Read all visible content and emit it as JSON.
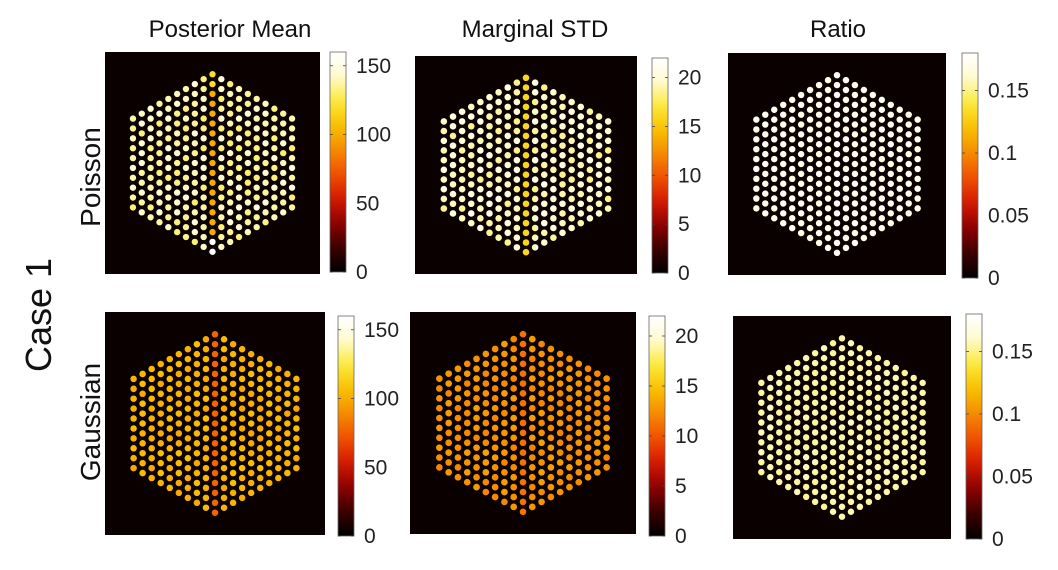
{
  "figure": {
    "case_label": "Case 1",
    "column_titles": [
      "Posterior Mean",
      "Marginal STD",
      "Ratio"
    ],
    "row_labels": [
      "Poisson",
      "Gaussian"
    ]
  },
  "colormap": {
    "name": "hot",
    "stops": [
      "#000000",
      "#3a0000",
      "#8c0000",
      "#d41a00",
      "#f05000",
      "#f58a00",
      "#f8c000",
      "#fbe93a",
      "#fffbd0",
      "#ffffff"
    ]
  },
  "chart_data": [
    {
      "type": "heatmap",
      "name": "poisson-posterior-mean",
      "title": "Posterior Mean",
      "row": "Poisson",
      "colorbar": {
        "range": [
          0,
          160
        ],
        "ticks": [
          0,
          50,
          100,
          150
        ],
        "tick_labels": [
          "0",
          "50",
          "100",
          "150"
        ]
      },
      "hex_pattern": {
        "rings": 9,
        "base_value": 138,
        "center_column_value": 100,
        "center_column_top_value": 120,
        "center_column_bottom_value": 160,
        "edge_variation": 8
      }
    },
    {
      "type": "heatmap",
      "name": "poisson-marginal-std",
      "title": "Marginal STD",
      "row": "Poisson",
      "colorbar": {
        "range": [
          0,
          22
        ],
        "ticks": [
          0,
          5,
          10,
          15,
          20
        ],
        "tick_labels": [
          "0",
          "5",
          "10",
          "15",
          "20"
        ]
      },
      "hex_pattern": {
        "rings": 9,
        "base_value": 19.5,
        "center_column_value": 16,
        "center_column_top_value": 16,
        "center_column_bottom_value": 16,
        "edge_variation": 1.2
      }
    },
    {
      "type": "heatmap",
      "name": "poisson-ratio",
      "title": "Ratio",
      "row": "Poisson",
      "colorbar": {
        "range": [
          0,
          0.18
        ],
        "ticks": [
          0,
          0.05,
          0.1,
          0.15
        ],
        "tick_labels": [
          "0",
          "0.05",
          "0.1",
          "0.15"
        ]
      },
      "hex_pattern": {
        "rings": 9,
        "base_value": 0.172,
        "center_column_value": 0.176,
        "center_column_top_value": 0.176,
        "center_column_bottom_value": 0.176,
        "edge_variation": 0.004
      }
    },
    {
      "type": "heatmap",
      "name": "gaussian-posterior-mean",
      "title": "Posterior Mean",
      "row": "Gaussian",
      "colorbar": {
        "range": [
          0,
          160
        ],
        "ticks": [
          0,
          50,
          100,
          150
        ],
        "tick_labels": [
          "0",
          "50",
          "100",
          "150"
        ]
      },
      "hex_pattern": {
        "rings": 9,
        "base_value": 103,
        "center_column_value": 78,
        "center_column_top_value": 78,
        "center_column_bottom_value": 78,
        "edge_variation": 4
      }
    },
    {
      "type": "heatmap",
      "name": "gaussian-marginal-std",
      "title": "Marginal STD",
      "row": "Gaussian",
      "colorbar": {
        "range": [
          0,
          22
        ],
        "ticks": [
          0,
          5,
          10,
          15,
          20
        ],
        "tick_labels": [
          "0",
          "5",
          "10",
          "15",
          "20"
        ]
      },
      "hex_pattern": {
        "rings": 9,
        "base_value": 12.6,
        "center_column_value": 11.2,
        "center_column_top_value": 11.2,
        "center_column_bottom_value": 11.2,
        "edge_variation": 0.6
      }
    },
    {
      "type": "heatmap",
      "name": "gaussian-ratio",
      "title": "Ratio",
      "row": "Gaussian",
      "colorbar": {
        "range": [
          0,
          0.18
        ],
        "ticks": [
          0,
          0.05,
          0.1,
          0.15
        ],
        "tick_labels": [
          "0",
          "0.05",
          "0.1",
          "0.15"
        ]
      },
      "hex_pattern": {
        "rings": 9,
        "base_value": 0.155,
        "center_column_value": 0.155,
        "center_column_top_value": 0.155,
        "center_column_bottom_value": 0.155,
        "edge_variation": 0.003
      }
    }
  ]
}
